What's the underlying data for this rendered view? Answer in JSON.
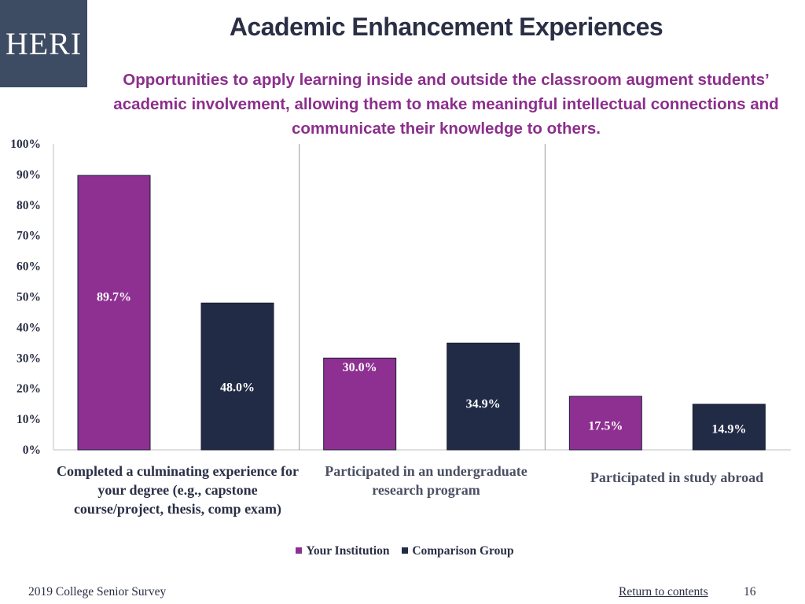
{
  "logo": "HERI",
  "title": "Academic Enhancement Experiences",
  "subtitle": "Opportunities to apply learning inside and outside the classroom augment students’ academic involvement, allowing them to make meaningful intellectual connections and communicate their knowledge to others.",
  "legend": {
    "your_institution": "Your Institution",
    "comparison_group": "Comparison Group"
  },
  "footer": {
    "survey": "2019 College Senior Survey",
    "return_link": "Return to contents",
    "page_number": "16"
  },
  "colors": {
    "your_institution": "#8e3091",
    "comparison_group": "#212b45"
  },
  "chart_data": {
    "type": "bar",
    "categories": [
      "Completed a culminating experience for your degree (e.g., capstone course/project, thesis, comp exam)",
      "Participated in an undergraduate research program",
      "Participated in study abroad"
    ],
    "series": [
      {
        "name": "Your Institution",
        "values": [
          89.7,
          30.0,
          17.5
        ],
        "labels": [
          "89.7%",
          "30.0%",
          "17.5%"
        ]
      },
      {
        "name": "Comparison Group",
        "values": [
          48.0,
          34.9,
          14.9
        ],
        "labels": [
          "48.0%",
          "34.9%",
          "14.9%"
        ]
      }
    ],
    "yticks": [
      "0%",
      "10%",
      "20%",
      "30%",
      "40%",
      "50%",
      "60%",
      "70%",
      "80%",
      "90%",
      "100%"
    ],
    "ylim": [
      0,
      100
    ],
    "grid": false,
    "legend_position": "bottom"
  }
}
